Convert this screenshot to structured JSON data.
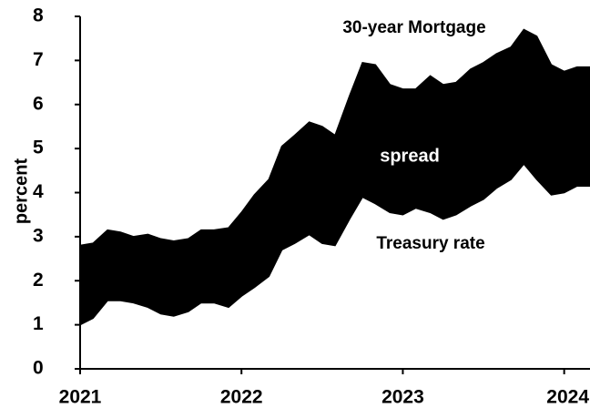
{
  "chart_data": {
    "type": "area_band",
    "ylabel": "percent",
    "annotations": [
      "spread"
    ],
    "x": [
      2021.0,
      2021.08,
      2021.17,
      2021.25,
      2021.33,
      2021.42,
      2021.5,
      2021.58,
      2021.67,
      2021.75,
      2021.83,
      2021.92,
      2022.0,
      2022.08,
      2022.17,
      2022.25,
      2022.33,
      2022.42,
      2022.5,
      2022.58,
      2022.67,
      2022.75,
      2022.83,
      2022.92,
      2023.0,
      2023.08,
      2023.17,
      2023.25,
      2023.33,
      2023.42,
      2023.5,
      2023.58,
      2023.67,
      2023.75,
      2023.83,
      2023.92,
      2024.0,
      2024.08,
      2024.16
    ],
    "series": [
      {
        "name": "30-year Mortgage",
        "color": "#000000",
        "values": [
          2.8,
          2.85,
          3.15,
          3.1,
          3.0,
          3.05,
          2.95,
          2.9,
          2.95,
          3.15,
          3.15,
          3.2,
          3.55,
          3.95,
          4.3,
          5.05,
          5.3,
          5.6,
          5.5,
          5.3,
          6.2,
          6.95,
          6.9,
          6.45,
          6.35,
          6.35,
          6.65,
          6.45,
          6.5,
          6.8,
          6.95,
          7.15,
          7.3,
          7.7,
          7.55,
          6.9,
          6.75,
          6.85,
          6.85
        ]
      },
      {
        "name": "Treasury rate",
        "color": "#000000",
        "values": [
          1.0,
          1.15,
          1.55,
          1.55,
          1.5,
          1.4,
          1.25,
          1.2,
          1.3,
          1.5,
          1.5,
          1.4,
          1.65,
          1.85,
          2.1,
          2.7,
          2.85,
          3.05,
          2.85,
          2.8,
          3.4,
          3.9,
          3.75,
          3.55,
          3.5,
          3.65,
          3.55,
          3.4,
          3.5,
          3.7,
          3.85,
          4.1,
          4.3,
          4.65,
          4.3,
          3.95,
          4.0,
          4.15,
          4.15
        ]
      }
    ],
    "fill_color": "#000000",
    "xlim": [
      2021,
      2024.16
    ],
    "xticks": [
      2021,
      2022,
      2023,
      2024
    ],
    "ylim": [
      0,
      8
    ],
    "yticks": [
      0,
      1,
      2,
      3,
      4,
      5,
      6,
      7,
      8
    ]
  }
}
